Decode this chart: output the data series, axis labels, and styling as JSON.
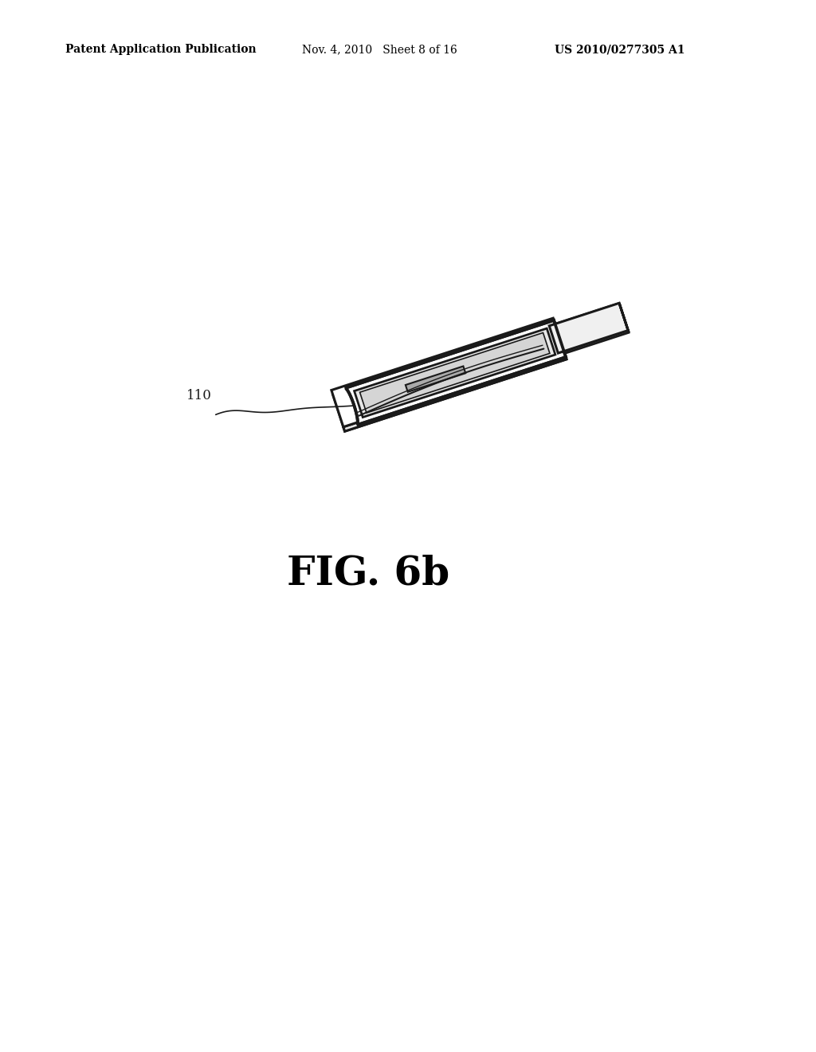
{
  "background_color": "#ffffff",
  "header_left": "Patent Application Publication",
  "header_mid": "Nov. 4, 2010   Sheet 8 of 16",
  "header_right": "US 2010/0277305 A1",
  "header_fontsize": 10,
  "figure_label": "FIG. 6b",
  "figure_label_fontsize": 36,
  "line_color": "#1a1a1a",
  "line_width": 2.2
}
